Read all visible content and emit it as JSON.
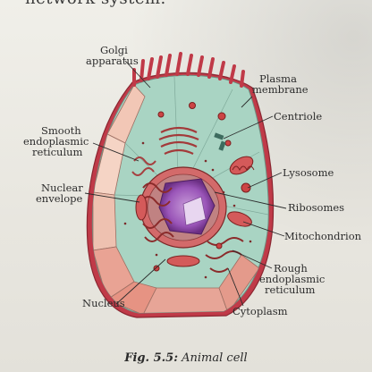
{
  "header_text": "network system.",
  "figure": {
    "caption_label": "Fig. 5.5:",
    "caption_title": "Animal cell",
    "labels": {
      "golgi_1": "Golgi",
      "golgi_2": "apparatus",
      "plasma_1": "Plasma",
      "plasma_2": "membrane",
      "centriole": "Centriole",
      "smooth_1": "Smooth",
      "smooth_2": "endoplasmic",
      "smooth_3": "reticulum",
      "lysosome": "Lysosome",
      "nuclear_1": "Nuclear",
      "nuclear_2": "envelope",
      "ribosomes": "Ribosomes",
      "mitochondrion": "Mitochondrion",
      "rough_1": "Rough",
      "rough_2": "endoplasmic",
      "rough_3": "reticulum",
      "nucleus": "Nucleus",
      "cytoplasm": "Cytoplasm"
    }
  }
}
